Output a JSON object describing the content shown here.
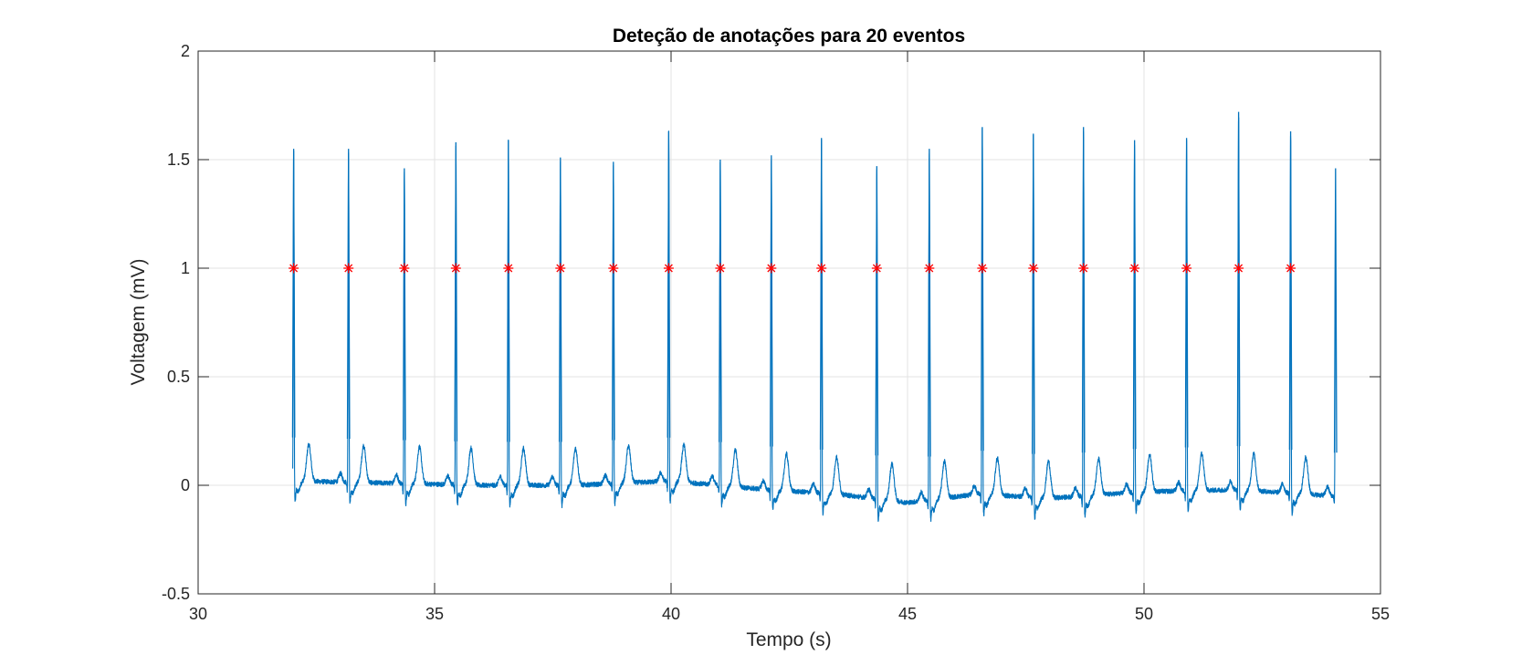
{
  "chart_data": {
    "type": "line",
    "title": "Deteção de anotações para 20 eventos",
    "xlabel": "Tempo (s)",
    "ylabel": "Voltagem (mV)",
    "xlim": [
      30,
      55
    ],
    "ylim": [
      -0.5,
      2
    ],
    "xticks": [
      "30",
      "35",
      "40",
      "45",
      "50",
      "55"
    ],
    "yticks": [
      "-0.5",
      "0",
      "0.5",
      "1",
      "1.5",
      "2"
    ],
    "xtick_values": [
      30,
      35,
      40,
      45,
      50,
      55
    ],
    "ytick_values": [
      -0.5,
      0,
      0.5,
      1,
      1.5,
      2
    ],
    "grid": true,
    "series": [
      {
        "kind": "ecg-signal",
        "color": "#0072BD",
        "x_start": 32.0,
        "x_end": 54.05,
        "r_peaks": [
          {
            "t": 32.02,
            "v": 1.55
          },
          {
            "t": 33.18,
            "v": 1.55
          },
          {
            "t": 34.36,
            "v": 1.46
          },
          {
            "t": 35.45,
            "v": 1.58
          },
          {
            "t": 36.56,
            "v": 1.59
          },
          {
            "t": 37.66,
            "v": 1.51
          },
          {
            "t": 38.78,
            "v": 1.49
          },
          {
            "t": 39.95,
            "v": 1.63
          },
          {
            "t": 41.04,
            "v": 1.5
          },
          {
            "t": 42.12,
            "v": 1.52
          },
          {
            "t": 43.18,
            "v": 1.6
          },
          {
            "t": 44.35,
            "v": 1.47
          },
          {
            "t": 45.46,
            "v": 1.55
          },
          {
            "t": 46.58,
            "v": 1.65
          },
          {
            "t": 47.66,
            "v": 1.62
          },
          {
            "t": 48.72,
            "v": 1.65
          },
          {
            "t": 49.8,
            "v": 1.59
          },
          {
            "t": 50.9,
            "v": 1.6
          },
          {
            "t": 52.0,
            "v": 1.72
          },
          {
            "t": 53.1,
            "v": 1.63
          },
          {
            "t": 54.05,
            "v": 1.46
          }
        ],
        "baseline": [
          {
            "t": 32.0,
            "v": 0.02
          },
          {
            "t": 34.0,
            "v": 0.01
          },
          {
            "t": 36.0,
            "v": 0.0
          },
          {
            "t": 38.0,
            "v": 0.0
          },
          {
            "t": 40.0,
            "v": 0.02
          },
          {
            "t": 42.0,
            "v": -0.02
          },
          {
            "t": 43.5,
            "v": -0.04
          },
          {
            "t": 45.0,
            "v": -0.08
          },
          {
            "t": 46.5,
            "v": -0.04
          },
          {
            "t": 48.0,
            "v": -0.06
          },
          {
            "t": 50.0,
            "v": -0.03
          },
          {
            "t": 52.0,
            "v": -0.02
          },
          {
            "t": 54.05,
            "v": -0.05
          }
        ]
      },
      {
        "kind": "annotations",
        "color": "#FF0000",
        "marker": "asterisk",
        "x": [
          32.02,
          33.18,
          34.36,
          35.45,
          36.56,
          37.66,
          38.78,
          39.95,
          41.04,
          42.12,
          43.18,
          44.35,
          45.46,
          46.58,
          47.66,
          48.72,
          49.8,
          50.9,
          52.0,
          53.1
        ],
        "y": [
          1,
          1,
          1,
          1,
          1,
          1,
          1,
          1,
          1,
          1,
          1,
          1,
          1,
          1,
          1,
          1,
          1,
          1,
          1,
          1
        ]
      }
    ]
  }
}
